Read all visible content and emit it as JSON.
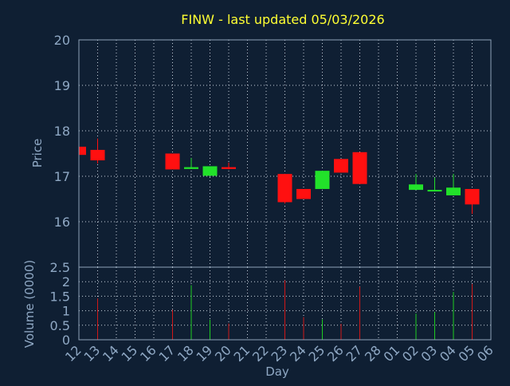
{
  "chart_data": {
    "type": "candlestick",
    "title": "FINW - last updated 05/03/2026",
    "ylabel_price": "Price",
    "ylabel_volume": "Volume (0000)",
    "xlabel": "Day",
    "price_ylim": [
      15.0,
      20.0
    ],
    "price_yticks": [
      "20",
      "19",
      "18",
      "17",
      "16"
    ],
    "volume_ylim": [
      0,
      2.5
    ],
    "volume_yticks": [
      "2.5",
      "2",
      "1.5",
      "1",
      "0.5",
      "0"
    ],
    "grid": true,
    "x_labels": [
      "12",
      "13",
      "14",
      "15",
      "16",
      "17",
      "18",
      "19",
      "20",
      "21",
      "22",
      "23",
      "24",
      "25",
      "26",
      "27",
      "28",
      "01",
      "02",
      "03",
      "04",
      "05",
      "06"
    ],
    "candles": [
      {
        "day": "12",
        "open": 17.65,
        "high": 17.65,
        "low": 17.45,
        "close": 17.47,
        "volume": 0.0
      },
      {
        "day": "13",
        "open": 17.58,
        "high": 17.83,
        "low": 17.28,
        "close": 17.35,
        "volume": 1.42
      },
      {
        "day": "17",
        "open": 17.5,
        "high": 17.5,
        "low": 17.15,
        "close": 17.15,
        "volume": 1.03
      },
      {
        "day": "18",
        "open": 17.16,
        "high": 17.4,
        "low": 17.16,
        "close": 17.2,
        "volume": 1.88
      },
      {
        "day": "19",
        "open": 17.01,
        "high": 17.22,
        "low": 17.01,
        "close": 17.22,
        "volume": 0.69
      },
      {
        "day": "20",
        "open": 17.2,
        "high": 17.3,
        "low": 17.15,
        "close": 17.16,
        "volume": 0.56
      },
      {
        "day": "23",
        "open": 17.05,
        "high": 17.05,
        "low": 16.4,
        "close": 16.43,
        "volume": 2.05
      },
      {
        "day": "24",
        "open": 16.72,
        "high": 16.72,
        "low": 16.5,
        "close": 16.5,
        "volume": 0.78
      },
      {
        "day": "25",
        "open": 16.72,
        "high": 17.12,
        "low": 16.72,
        "close": 17.12,
        "volume": 0.7
      },
      {
        "day": "26",
        "open": 17.38,
        "high": 17.38,
        "low": 17.08,
        "close": 17.08,
        "volume": 0.55
      },
      {
        "day": "27",
        "open": 17.53,
        "high": 17.53,
        "low": 16.83,
        "close": 16.83,
        "volume": 1.83
      },
      {
        "day": "02",
        "open": 16.7,
        "high": 17.05,
        "low": 16.7,
        "close": 16.82,
        "volume": 0.9
      },
      {
        "day": "03",
        "open": 16.68,
        "high": 16.97,
        "low": 16.68,
        "close": 16.7,
        "volume": 0.95
      },
      {
        "day": "04",
        "open": 16.58,
        "high": 17.05,
        "low": 16.58,
        "close": 16.75,
        "volume": 1.65
      },
      {
        "day": "05",
        "open": 16.72,
        "high": 16.72,
        "low": 16.17,
        "close": 16.38,
        "volume": 1.92
      }
    ],
    "colors": {
      "up": "#22e22a",
      "down": "#ff1010",
      "vol_up": "#1fcc22",
      "vol_down": "#d01818",
      "background": "#0f1f33",
      "title": "#ffff33",
      "labels": "#8fa8c4",
      "grid": "#c8d2dc"
    }
  }
}
